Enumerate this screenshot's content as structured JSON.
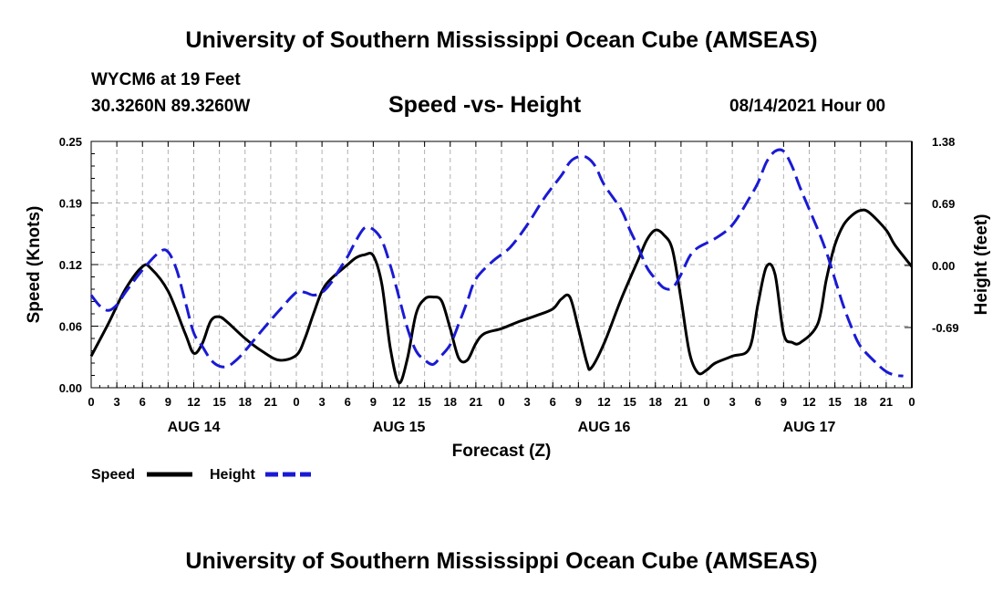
{
  "header": {
    "title": "University of Southern Mississippi Ocean Cube (AMSEAS)",
    "station": "WYCM6 at 19 Feet",
    "coords": "30.3260N  89.3260W",
    "chart_title": "Speed -vs- Height",
    "date": "08/14/2021 Hour 00"
  },
  "footer": {
    "title": "University of Southern Mississippi Ocean Cube (AMSEAS)"
  },
  "chart_data": {
    "type": "line",
    "title": "Speed -vs- Height",
    "xlabel": "Forecast (Z)",
    "ylabel": "Speed (Knots)",
    "y2label": "Height (feet)",
    "x_range": [
      0,
      96
    ],
    "ylim": [
      0,
      0.25
    ],
    "y2lim": [
      -1.36,
      1.38
    ],
    "y_ticks": [
      "0.00",
      "0.06",
      "0.12",
      "0.19",
      "0.25"
    ],
    "y_tick_values": [
      0,
      0.0625,
      0.125,
      0.1875,
      0.25
    ],
    "y2_ticks": [
      "-0.69",
      "0.00",
      "0.69",
      "1.38"
    ],
    "y2_tick_values": [
      -0.69,
      0,
      0.69,
      1.38
    ],
    "x_tick_values": [
      0,
      3,
      6,
      9,
      12,
      15,
      18,
      21,
      24,
      27,
      30,
      33,
      36,
      39,
      42,
      45,
      48,
      51,
      54,
      57,
      60,
      63,
      66,
      69,
      72,
      75,
      78,
      81,
      84,
      87,
      90,
      93,
      96
    ],
    "x_tick_labels": [
      "0",
      "3",
      "6",
      "9",
      "12",
      "15",
      "18",
      "21",
      "0",
      "3",
      "6",
      "9",
      "12",
      "15",
      "18",
      "21",
      "0",
      "3",
      "6",
      "9",
      "12",
      "15",
      "18",
      "21",
      "0",
      "3",
      "6",
      "9",
      "12",
      "15",
      "18",
      "21",
      "0"
    ],
    "day_labels": [
      "AUG 14",
      "AUG 15",
      "AUG 16",
      "AUG 17"
    ],
    "day_label_hours": [
      12,
      36,
      60,
      84
    ],
    "grid": true,
    "series": [
      {
        "name": "Speed",
        "axis": "left",
        "color": "#000000",
        "dash": "solid",
        "points": [
          [
            0,
            0.032
          ],
          [
            2,
            0.065
          ],
          [
            4,
            0.1
          ],
          [
            6,
            0.123
          ],
          [
            7,
            0.121
          ],
          [
            9,
            0.098
          ],
          [
            11,
            0.055
          ],
          [
            12,
            0.035
          ],
          [
            13,
            0.045
          ],
          [
            14,
            0.068
          ],
          [
            15,
            0.072
          ],
          [
            16,
            0.066
          ],
          [
            18,
            0.05
          ],
          [
            20,
            0.037
          ],
          [
            22,
            0.028
          ],
          [
            24,
            0.033
          ],
          [
            25,
            0.05
          ],
          [
            26,
            0.075
          ],
          [
            27,
            0.098
          ],
          [
            28,
            0.11
          ],
          [
            30,
            0.125
          ],
          [
            31,
            0.132
          ],
          [
            32,
            0.135
          ],
          [
            33,
            0.134
          ],
          [
            34,
            0.105
          ],
          [
            35,
            0.04
          ],
          [
            36,
            0.005
          ],
          [
            37,
            0.03
          ],
          [
            38,
            0.075
          ],
          [
            39,
            0.09
          ],
          [
            40,
            0.092
          ],
          [
            41,
            0.088
          ],
          [
            42,
            0.06
          ],
          [
            43,
            0.03
          ],
          [
            44,
            0.028
          ],
          [
            45,
            0.045
          ],
          [
            46,
            0.055
          ],
          [
            48,
            0.06
          ],
          [
            50,
            0.067
          ],
          [
            52,
            0.073
          ],
          [
            54,
            0.08
          ],
          [
            55,
            0.09
          ],
          [
            56,
            0.092
          ],
          [
            57,
            0.06
          ],
          [
            58,
            0.025
          ],
          [
            58.5,
            0.02
          ],
          [
            60,
            0.045
          ],
          [
            62,
            0.09
          ],
          [
            64,
            0.13
          ],
          [
            65,
            0.15
          ],
          [
            66,
            0.16
          ],
          [
            67,
            0.155
          ],
          [
            68,
            0.14
          ],
          [
            69,
            0.09
          ],
          [
            70,
            0.035
          ],
          [
            71,
            0.015
          ],
          [
            72,
            0.018
          ],
          [
            73,
            0.025
          ],
          [
            75,
            0.032
          ],
          [
            77,
            0.04
          ],
          [
            78,
            0.085
          ],
          [
            79,
            0.123
          ],
          [
            80,
            0.115
          ],
          [
            81,
            0.055
          ],
          [
            82,
            0.046
          ],
          [
            83,
            0.046
          ],
          [
            85,
            0.065
          ],
          [
            86,
            0.11
          ],
          [
            87,
            0.145
          ],
          [
            88,
            0.165
          ],
          [
            89,
            0.175
          ],
          [
            90,
            0.18
          ],
          [
            91,
            0.178
          ],
          [
            93,
            0.16
          ],
          [
            94,
            0.145
          ],
          [
            96,
            0.123
          ]
        ]
      },
      {
        "name": "Height",
        "axis": "right",
        "color": "#1a1ad4",
        "dash": "dashed",
        "points": [
          [
            0,
            -0.33
          ],
          [
            1,
            -0.45
          ],
          [
            2,
            -0.5
          ],
          [
            3,
            -0.44
          ],
          [
            4,
            -0.3
          ],
          [
            6,
            -0.05
          ],
          [
            8,
            0.15
          ],
          [
            9,
            0.15
          ],
          [
            10,
            -0.05
          ],
          [
            11,
            -0.4
          ],
          [
            12,
            -0.75
          ],
          [
            13,
            -0.9
          ],
          [
            14,
            -1.05
          ],
          [
            15,
            -1.12
          ],
          [
            16,
            -1.12
          ],
          [
            17,
            -1.05
          ],
          [
            18,
            -0.95
          ],
          [
            20,
            -0.72
          ],
          [
            22,
            -0.5
          ],
          [
            24,
            -0.3
          ],
          [
            25,
            -0.3
          ],
          [
            26,
            -0.33
          ],
          [
            27,
            -0.3
          ],
          [
            28,
            -0.2
          ],
          [
            29,
            -0.05
          ],
          [
            30,
            0.1
          ],
          [
            31,
            0.28
          ],
          [
            32,
            0.42
          ],
          [
            33,
            0.4
          ],
          [
            34,
            0.28
          ],
          [
            35,
            0.0
          ],
          [
            36,
            -0.35
          ],
          [
            37,
            -0.7
          ],
          [
            38,
            -0.95
          ],
          [
            39,
            -1.05
          ],
          [
            40,
            -1.1
          ],
          [
            41,
            -1.0
          ],
          [
            42,
            -0.88
          ],
          [
            43,
            -0.65
          ],
          [
            44,
            -0.4
          ],
          [
            45,
            -0.15
          ],
          [
            47,
            0.05
          ],
          [
            49,
            0.2
          ],
          [
            51,
            0.45
          ],
          [
            53,
            0.75
          ],
          [
            55,
            1.0
          ],
          [
            56,
            1.15
          ],
          [
            57,
            1.21
          ],
          [
            58,
            1.2
          ],
          [
            59,
            1.1
          ],
          [
            60,
            0.9
          ],
          [
            62,
            0.62
          ],
          [
            63,
            0.4
          ],
          [
            64,
            0.2
          ],
          [
            65,
            -0.02
          ],
          [
            66,
            -0.15
          ],
          [
            67,
            -0.25
          ],
          [
            68,
            -0.25
          ],
          [
            69,
            -0.1
          ],
          [
            70,
            0.1
          ],
          [
            71,
            0.2
          ],
          [
            73,
            0.3
          ],
          [
            75,
            0.45
          ],
          [
            77,
            0.75
          ],
          [
            78,
            0.92
          ],
          [
            79,
            1.15
          ],
          [
            80,
            1.27
          ],
          [
            81,
            1.27
          ],
          [
            82,
            1.1
          ],
          [
            83,
            0.85
          ],
          [
            85,
            0.4
          ],
          [
            86,
            0.15
          ],
          [
            87,
            -0.15
          ],
          [
            88,
            -0.45
          ],
          [
            89,
            -0.7
          ],
          [
            90,
            -0.9
          ],
          [
            92,
            -1.1
          ],
          [
            93,
            -1.18
          ],
          [
            94,
            -1.22
          ],
          [
            95,
            -1.23
          ]
        ]
      }
    ],
    "legend": {
      "position": "bottom-left"
    }
  }
}
